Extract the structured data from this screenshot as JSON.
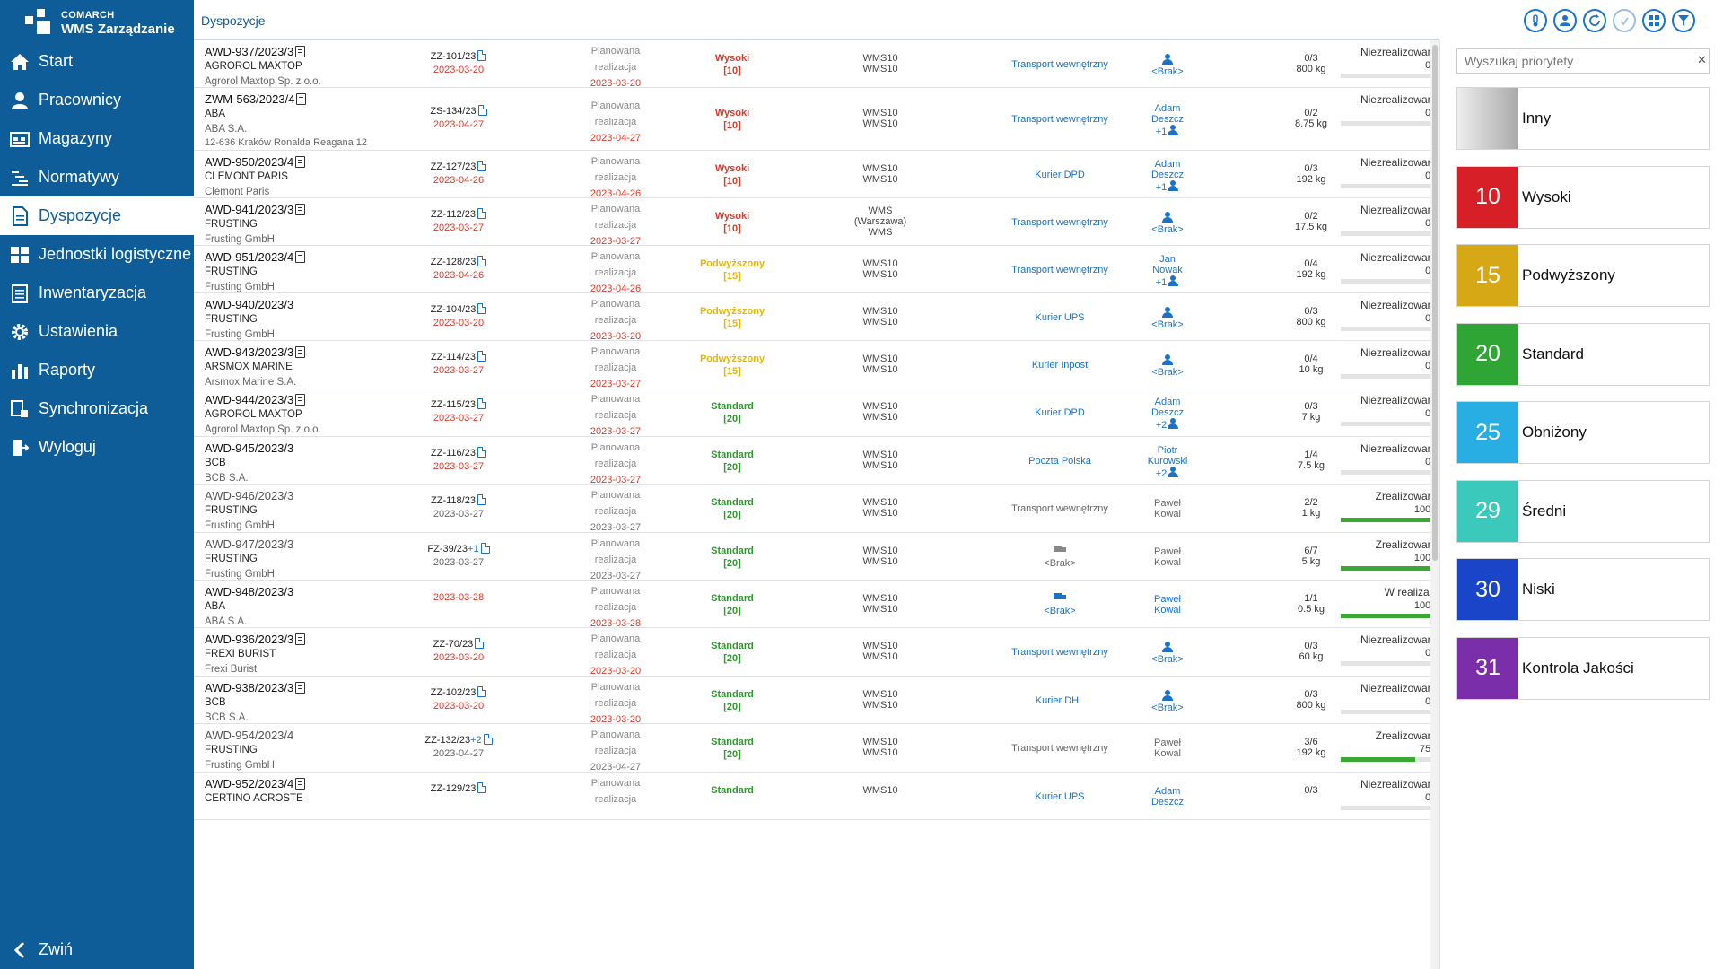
{
  "app": {
    "brand_line1": "COMARCH",
    "brand_line2": "WMS Zarządzanie"
  },
  "sidebar": {
    "items": [
      {
        "label": "Start",
        "icon": "home-icon",
        "active": false
      },
      {
        "label": "Pracownicy",
        "icon": "user-icon",
        "active": false
      },
      {
        "label": "Magazyny",
        "icon": "warehouse-icon",
        "active": false
      },
      {
        "label": "Normatywy",
        "icon": "norms-icon",
        "active": false
      },
      {
        "label": "Dyspozycje",
        "icon": "document-icon",
        "active": true
      },
      {
        "label": "Jednostki logistyczne",
        "icon": "grid-icon",
        "active": false
      },
      {
        "label": "Inwentaryzacja",
        "icon": "clipboard-icon",
        "active": false
      },
      {
        "label": "Ustawienia",
        "icon": "gear-icon",
        "active": false
      },
      {
        "label": "Raporty",
        "icon": "chart-icon",
        "active": false
      },
      {
        "label": "Synchronizacja",
        "icon": "sync-icon",
        "active": false
      },
      {
        "label": "Wyloguj",
        "icon": "logout-icon",
        "active": false
      }
    ],
    "collapse_label": "Zwiń"
  },
  "header": {
    "breadcrumb": "Dyspozycje"
  },
  "colors": {
    "red": "#d93b2b",
    "orange": "#e8b600",
    "green": "#2e9a2e",
    "blue": "#1a73c8",
    "sidebar": "#0e5d99"
  },
  "rows": [
    {
      "no": "AWD-937/2023/3",
      "att": true,
      "grey": false,
      "company": "AGROROL MAXTOP",
      "full": "Agrorol Maxtop Sp. z o.o.",
      "addr": "",
      "src": "ZZ-101/23",
      "src_extra": "",
      "src_date": "2023-03-20",
      "src_red": true,
      "plan1": "Planowana",
      "plan2": "realizacja",
      "plan_date": "2023-03-20",
      "plan_red": true,
      "prio": "Wysoki",
      "prio_code": "[10]",
      "prio_color": "red",
      "wms1": "WMS10",
      "wms2": "WMS10",
      "wms3": "",
      "transport": "Transport wewnętrzny",
      "transport_blue": true,
      "truck": false,
      "op1": "",
      "op2": "<Brak>",
      "op_more": "",
      "op_icon": true,
      "op_blue": true,
      "qty": "0/3",
      "weight": "800 kg",
      "status": "Niezrealizowane",
      "pct": "0%",
      "fill": 0
    },
    {
      "no": "ZWM-563/2023/4",
      "att": true,
      "grey": false,
      "company": "ABA",
      "full": "ABA S.A.",
      "addr": "12-636 Kraków Ronalda Reagana 12",
      "src": "ZS-134/23",
      "src_extra": "",
      "src_date": "2023-04-27",
      "src_red": true,
      "plan1": "Planowana",
      "plan2": "realizacja",
      "plan_date": "2023-04-27",
      "plan_red": true,
      "prio": "Wysoki",
      "prio_code": "[10]",
      "prio_color": "red",
      "wms1": "WMS10",
      "wms2": "WMS10",
      "wms3": "",
      "transport": "Transport wewnętrzny",
      "transport_blue": true,
      "truck": false,
      "op1": "Adam",
      "op2": "Deszcz",
      "op_more": "+1",
      "op_icon": true,
      "op_blue": true,
      "qty": "0/2",
      "weight": "8.75 kg",
      "status": "Niezrealizowane",
      "pct": "0%",
      "fill": 0
    },
    {
      "no": "AWD-950/2023/4",
      "att": true,
      "grey": false,
      "company": "CLEMONT PARIS",
      "full": "Clemont Paris",
      "addr": "",
      "src": "ZZ-127/23",
      "src_extra": "",
      "src_date": "2023-04-26",
      "src_red": true,
      "plan1": "Planowana",
      "plan2": "realizacja",
      "plan_date": "2023-04-26",
      "plan_red": true,
      "prio": "Wysoki",
      "prio_code": "[10]",
      "prio_color": "red",
      "wms1": "WMS10",
      "wms2": "WMS10",
      "wms3": "",
      "transport": "Kurier DPD",
      "transport_blue": true,
      "truck": false,
      "op1": "Adam",
      "op2": "Deszcz",
      "op_more": "+1",
      "op_icon": true,
      "op_blue": true,
      "qty": "0/3",
      "weight": "192 kg",
      "status": "Niezrealizowane",
      "pct": "0%",
      "fill": 0
    },
    {
      "no": "AWD-941/2023/3",
      "att": true,
      "grey": false,
      "company": "FRUSTING",
      "full": "Frusting GmbH",
      "addr": "",
      "src": "ZZ-112/23",
      "src_extra": "",
      "src_date": "2023-03-27",
      "src_red": true,
      "plan1": "Planowana",
      "plan2": "realizacja",
      "plan_date": "2023-03-27",
      "plan_red": true,
      "prio": "Wysoki",
      "prio_code": "[10]",
      "prio_color": "red",
      "wms1": "WMS",
      "wms2": "(Warszawa)",
      "wms3": "WMS",
      "transport": "Transport wewnętrzny",
      "transport_blue": true,
      "truck": false,
      "op1": "",
      "op2": "<Brak>",
      "op_more": "",
      "op_icon": true,
      "op_blue": true,
      "qty": "0/2",
      "weight": "17.5 kg",
      "status": "Niezrealizowane",
      "pct": "0%",
      "fill": 0
    },
    {
      "no": "AWD-951/2023/4",
      "att": true,
      "grey": false,
      "company": "FRUSTING",
      "full": "Frusting GmbH",
      "addr": "",
      "src": "ZZ-128/23",
      "src_extra": "",
      "src_date": "2023-04-26",
      "src_red": true,
      "plan1": "Planowana",
      "plan2": "realizacja",
      "plan_date": "2023-04-26",
      "plan_red": true,
      "prio": "Podwyższony",
      "prio_code": "[15]",
      "prio_color": "orange",
      "wms1": "WMS10",
      "wms2": "WMS10",
      "wms3": "",
      "transport": "Transport wewnętrzny",
      "transport_blue": true,
      "truck": false,
      "op1": "Jan",
      "op2": "Nowak",
      "op_more": "+1",
      "op_icon": true,
      "op_blue": true,
      "qty": "0/4",
      "weight": "192 kg",
      "status": "Niezrealizowane",
      "pct": "0%",
      "fill": 0
    },
    {
      "no": "AWD-940/2023/3",
      "att": false,
      "grey": false,
      "company": "FRUSTING",
      "full": "Frusting GmbH",
      "addr": "",
      "src": "ZZ-104/23",
      "src_extra": "",
      "src_date": "2023-03-20",
      "src_red": true,
      "plan1": "Planowana",
      "plan2": "realizacja",
      "plan_date": "2023-03-20",
      "plan_red": true,
      "prio": "Podwyższony",
      "prio_code": "[15]",
      "prio_color": "orange",
      "wms1": "WMS10",
      "wms2": "WMS10",
      "wms3": "",
      "transport": "Kurier UPS",
      "transport_blue": true,
      "truck": false,
      "op1": "",
      "op2": "<Brak>",
      "op_more": "",
      "op_icon": true,
      "op_blue": true,
      "qty": "0/3",
      "weight": "800 kg",
      "status": "Niezrealizowane",
      "pct": "0%",
      "fill": 0
    },
    {
      "no": "AWD-943/2023/3",
      "att": true,
      "grey": false,
      "company": "ARSMOX MARINE",
      "full": "Arsmox Marine S.A.",
      "addr": "",
      "src": "ZZ-114/23",
      "src_extra": "",
      "src_date": "2023-03-27",
      "src_red": true,
      "plan1": "Planowana",
      "plan2": "realizacja",
      "plan_date": "2023-03-27",
      "plan_red": true,
      "prio": "Podwyższony",
      "prio_code": "[15]",
      "prio_color": "orange",
      "wms1": "WMS10",
      "wms2": "WMS10",
      "wms3": "",
      "transport": "Kurier Inpost",
      "transport_blue": true,
      "truck": false,
      "op1": "",
      "op2": "<Brak>",
      "op_more": "",
      "op_icon": true,
      "op_blue": true,
      "qty": "0/4",
      "weight": "10 kg",
      "status": "Niezrealizowane",
      "pct": "0%",
      "fill": 0
    },
    {
      "no": "AWD-944/2023/3",
      "att": true,
      "grey": false,
      "company": "AGROROL MAXTOP",
      "full": "Agrorol Maxtop Sp. z o.o.",
      "addr": "",
      "src": "ZZ-115/23",
      "src_extra": "",
      "src_date": "2023-03-27",
      "src_red": true,
      "plan1": "Planowana",
      "plan2": "realizacja",
      "plan_date": "2023-03-27",
      "plan_red": true,
      "prio": "Standard",
      "prio_code": "[20]",
      "prio_color": "green",
      "wms1": "WMS10",
      "wms2": "WMS10",
      "wms3": "",
      "transport": "Kurier DPD",
      "transport_blue": true,
      "truck": false,
      "op1": "Adam",
      "op2": "Deszcz",
      "op_more": "+2",
      "op_icon": true,
      "op_blue": true,
      "qty": "0/3",
      "weight": "7 kg",
      "status": "Niezrealizowane",
      "pct": "0%",
      "fill": 0
    },
    {
      "no": "AWD-945/2023/3",
      "att": false,
      "grey": false,
      "company": "BCB",
      "full": "BCB S.A.",
      "addr": "",
      "src": "ZZ-116/23",
      "src_extra": "",
      "src_date": "2023-03-27",
      "src_red": true,
      "plan1": "Planowana",
      "plan2": "realizacja",
      "plan_date": "2023-03-27",
      "plan_red": true,
      "prio": "Standard",
      "prio_code": "[20]",
      "prio_color": "green",
      "wms1": "WMS10",
      "wms2": "WMS10",
      "wms3": "",
      "transport": "Poczta Polska",
      "transport_blue": true,
      "truck": false,
      "op1": "Piotr",
      "op2": "Kurowski",
      "op_more": "+2",
      "op_icon": true,
      "op_blue": true,
      "qty": "1/4",
      "weight": "7.5 kg",
      "status": "Niezrealizowane",
      "pct": "0%",
      "fill": 0
    },
    {
      "no": "AWD-946/2023/3",
      "att": false,
      "grey": true,
      "company": "FRUSTING",
      "full": "Frusting GmbH",
      "addr": "",
      "src": "ZZ-118/23",
      "src_extra": "",
      "src_date": "2023-03-27",
      "src_red": false,
      "plan1": "Planowana",
      "plan2": "realizacja",
      "plan_date": "2023-03-27",
      "plan_red": false,
      "prio": "Standard",
      "prio_code": "[20]",
      "prio_color": "green",
      "wms1": "WMS10",
      "wms2": "WMS10",
      "wms3": "",
      "transport": "Transport wewnętrzny",
      "transport_blue": false,
      "truck": false,
      "op1": "Paweł",
      "op2": "Kowal",
      "op_more": "",
      "op_icon": false,
      "op_blue": false,
      "qty": "2/2",
      "weight": "1 kg",
      "status": "Zrealizowane",
      "pct": "100%",
      "fill": 1
    },
    {
      "no": "AWD-947/2023/3",
      "att": false,
      "grey": true,
      "company": "FRUSTING",
      "full": "Frusting GmbH",
      "addr": "",
      "src": "FZ-39/23",
      "src_extra": "+1",
      "src_date": "2023-03-27",
      "src_red": false,
      "plan1": "Planowana",
      "plan2": "realizacja",
      "plan_date": "2023-03-27",
      "plan_red": false,
      "prio": "Standard",
      "prio_code": "[20]",
      "prio_color": "green",
      "wms1": "WMS10",
      "wms2": "WMS10",
      "wms3": "",
      "transport": "<Brak>",
      "transport_blue": false,
      "truck": true,
      "op1": "Paweł",
      "op2": "Kowal",
      "op_more": "",
      "op_icon": false,
      "op_blue": false,
      "qty": "6/7",
      "weight": "5 kg",
      "status": "Zrealizowane",
      "pct": "100%",
      "fill": 1
    },
    {
      "no": "AWD-948/2023/3",
      "att": false,
      "grey": false,
      "company": "ABA",
      "full": "ABA S.A.",
      "addr": "",
      "src": "",
      "src_extra": "",
      "src_date": "2023-03-28",
      "src_red": true,
      "plan1": "Planowana",
      "plan2": "realizacja",
      "plan_date": "2023-03-28",
      "plan_red": true,
      "prio": "Standard",
      "prio_code": "[20]",
      "prio_color": "green",
      "wms1": "WMS10",
      "wms2": "WMS10",
      "wms3": "",
      "transport": "<Brak>",
      "transport_blue": true,
      "truck": true,
      "op1": "Paweł",
      "op2": "Kowal",
      "op_more": "",
      "op_icon": false,
      "op_blue": true,
      "qty": "1/1",
      "weight": "0.5 kg",
      "status": "W realizacji",
      "pct": "100%",
      "fill": 1
    },
    {
      "no": "AWD-936/2023/3",
      "att": true,
      "grey": false,
      "company": "FREXI BURIST",
      "full": "Frexi Burist",
      "addr": "",
      "src": "ZZ-70/23",
      "src_extra": "",
      "src_date": "2023-03-20",
      "src_red": true,
      "plan1": "Planowana",
      "plan2": "realizacja",
      "plan_date": "2023-03-20",
      "plan_red": true,
      "prio": "Standard",
      "prio_code": "[20]",
      "prio_color": "green",
      "wms1": "WMS10",
      "wms2": "WMS10",
      "wms3": "",
      "transport": "Transport wewnętrzny",
      "transport_blue": true,
      "truck": false,
      "op1": "",
      "op2": "<Brak>",
      "op_more": "",
      "op_icon": true,
      "op_blue": true,
      "qty": "0/3",
      "weight": "60 kg",
      "status": "Niezrealizowane",
      "pct": "0%",
      "fill": 0
    },
    {
      "no": "AWD-938/2023/3",
      "att": true,
      "grey": false,
      "company": "BCB",
      "full": "BCB S.A.",
      "addr": "",
      "src": "ZZ-102/23",
      "src_extra": "",
      "src_date": "2023-03-20",
      "src_red": true,
      "plan1": "Planowana",
      "plan2": "realizacja",
      "plan_date": "2023-03-20",
      "plan_red": true,
      "prio": "Standard",
      "prio_code": "[20]",
      "prio_color": "green",
      "wms1": "WMS10",
      "wms2": "WMS10",
      "wms3": "",
      "transport": "Kurier DHL",
      "transport_blue": true,
      "truck": false,
      "op1": "",
      "op2": "<Brak>",
      "op_more": "",
      "op_icon": true,
      "op_blue": true,
      "qty": "0/3",
      "weight": "800 kg",
      "status": "Niezrealizowane",
      "pct": "0%",
      "fill": 0
    },
    {
      "no": "AWD-954/2023/4",
      "att": false,
      "grey": true,
      "company": "FRUSTING",
      "full": "Frusting GmbH",
      "addr": "",
      "src": "ZZ-132/23",
      "src_extra": "+2",
      "src_date": "2023-04-27",
      "src_red": false,
      "plan1": "Planowana",
      "plan2": "realizacja",
      "plan_date": "2023-04-27",
      "plan_red": false,
      "prio": "Standard",
      "prio_code": "[20]",
      "prio_color": "green",
      "wms1": "WMS10",
      "wms2": "WMS10",
      "wms3": "",
      "transport": "Transport wewnętrzny",
      "transport_blue": false,
      "truck": false,
      "op1": "Paweł",
      "op2": "Kowal",
      "op_more": "",
      "op_icon": false,
      "op_blue": false,
      "qty": "3/6",
      "weight": "192 kg",
      "status": "Zrealizowane",
      "pct": "75%",
      "fill": 0.75
    },
    {
      "no": "AWD-952/2023/4",
      "att": true,
      "grey": false,
      "company": "CERTINO ACROSTE",
      "full": "",
      "addr": "",
      "src": "ZZ-129/23",
      "src_extra": "",
      "src_date": "",
      "src_red": true,
      "plan1": "Planowana",
      "plan2": "realizacja",
      "plan_date": "",
      "plan_red": true,
      "prio": "Standard",
      "prio_code": "",
      "prio_color": "green",
      "wms1": "WMS10",
      "wms2": "",
      "wms3": "",
      "transport": "Kurier UPS",
      "transport_blue": true,
      "truck": false,
      "op1": "Adam",
      "op2": "Deszcz",
      "op_more": "",
      "op_icon": false,
      "op_blue": true,
      "qty": "0/3",
      "weight": "",
      "status": "Niezrealizowane",
      "pct": "0%",
      "fill": 0
    }
  ],
  "panel": {
    "search_placeholder": "Wyszukaj priorytety",
    "priorities": [
      {
        "num": "",
        "name": "Inny",
        "color": "#c2c2c2"
      },
      {
        "num": "10",
        "name": "Wysoki",
        "color": "#d61f26"
      },
      {
        "num": "15",
        "name": "Podwyższony",
        "color": "#d6a815"
      },
      {
        "num": "20",
        "name": "Standard",
        "color": "#2fa535"
      },
      {
        "num": "25",
        "name": "Obniżony",
        "color": "#29aee3"
      },
      {
        "num": "29",
        "name": "Średni",
        "color": "#3ac9bb"
      },
      {
        "num": "30",
        "name": "Niski",
        "color": "#1a45c9"
      },
      {
        "num": "31",
        "name": "Kontrola Jakości",
        "color": "#7a2eaa"
      }
    ]
  }
}
